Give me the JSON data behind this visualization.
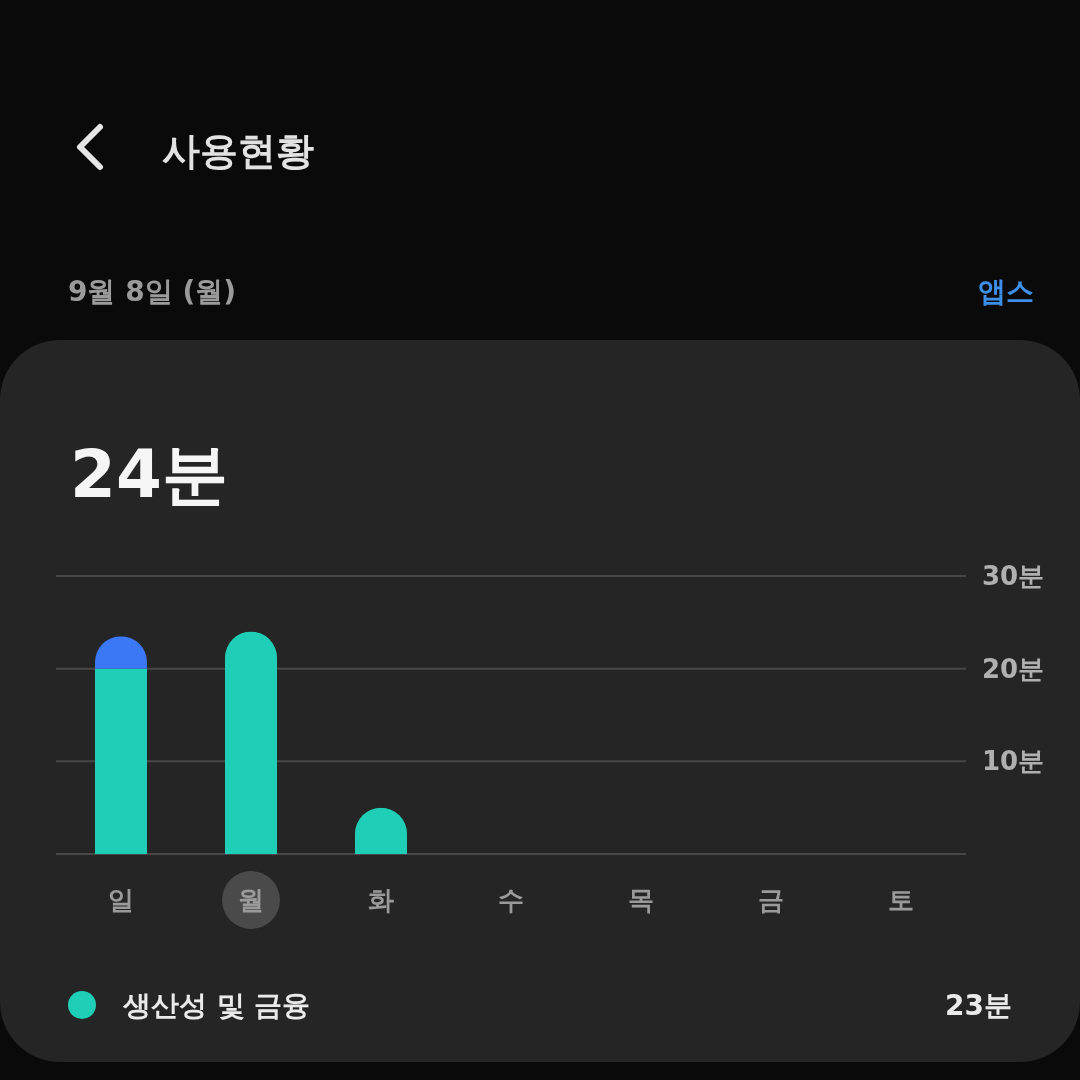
{
  "chart_data": {
    "type": "bar",
    "title": "사용현황",
    "subtitle": "9월 8일 (월)",
    "annotations": [
      "24분",
      "앱스",
      "23분"
    ],
    "categories": [
      "일",
      "월",
      "화",
      "수",
      "목",
      "금",
      "토"
    ],
    "series": [
      {
        "name": "생산성 및 금융",
        "color": "#1fceb7",
        "values": [
          20,
          24,
          5,
          null,
          null,
          null,
          null
        ]
      },
      {
        "color": "#3b78f6",
        "values": [
          3.5,
          null,
          null,
          null,
          null,
          null,
          null
        ]
      }
    ],
    "stacked": true,
    "ylim": [
      0,
      30
    ],
    "yticks": [
      {
        "value": 0,
        "label": null
      },
      {
        "value": 10,
        "label": "10분"
      },
      {
        "value": 20,
        "label": "20분"
      },
      {
        "value": 30,
        "label": "30분"
      }
    ],
    "grid": "y",
    "legend": "bottom"
  }
}
